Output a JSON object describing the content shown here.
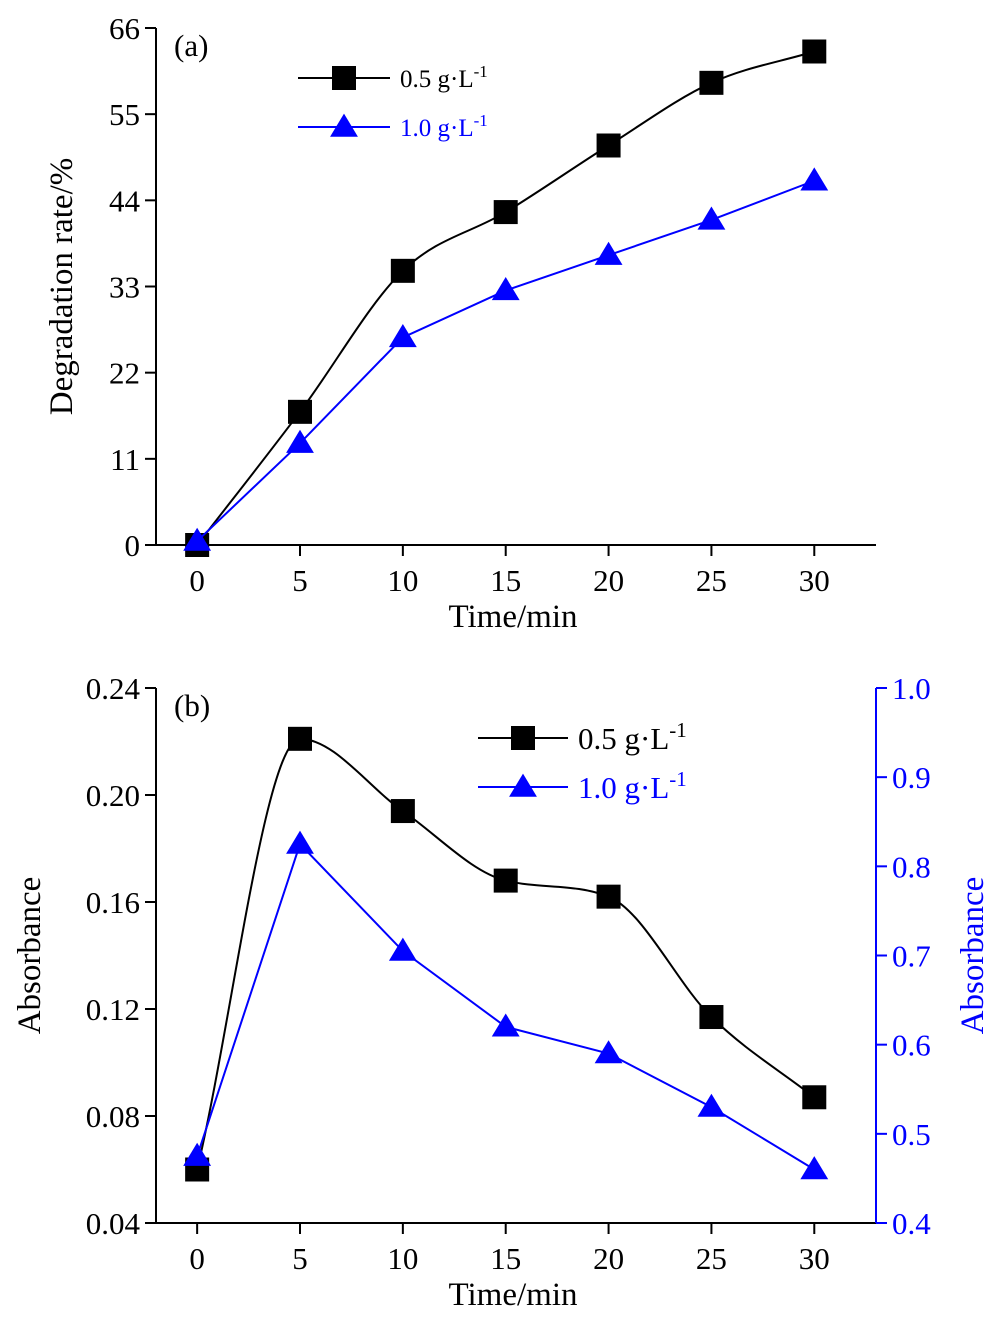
{
  "colors": {
    "black": "#000000",
    "blue": "#0000ff"
  },
  "chart_data": [
    {
      "type": "line",
      "panel_label": "(a)",
      "xlabel": "Time/min",
      "ylabel": "Degradation rate/%",
      "x": [
        0,
        5,
        10,
        15,
        20,
        25,
        30
      ],
      "xlim": [
        -2,
        33
      ],
      "ylim": [
        0,
        66
      ],
      "xticks": [
        "0",
        "5",
        "10",
        "15",
        "20",
        "25",
        "30"
      ],
      "yticks": [
        "0",
        "11",
        "22",
        "33",
        "44",
        "55",
        "66"
      ],
      "legend_position": "top-center",
      "grid": false,
      "series": [
        {
          "name": "0.5 g·L",
          "superscript": "-1",
          "marker": "square",
          "color": "#000000",
          "smooth": true,
          "values": [
            0,
            17,
            35,
            42.5,
            51,
            59,
            63
          ]
        },
        {
          "name": "1.0 g·L",
          "superscript": "-1",
          "marker": "triangle",
          "color": "#0000ff",
          "smooth": false,
          "values": [
            0.5,
            13,
            26.5,
            32.5,
            37,
            41.5,
            46.5
          ]
        }
      ]
    },
    {
      "type": "line",
      "panel_label": "(b)",
      "xlabel": "Time/min",
      "ylabel": "Absorbance",
      "ylabel_right": "Absorbance",
      "x": [
        0,
        5,
        10,
        15,
        20,
        25,
        30
      ],
      "xlim": [
        -2,
        33
      ],
      "ylim": [
        0.04,
        0.24
      ],
      "ylim_right": [
        0.4,
        1.0
      ],
      "xticks": [
        "0",
        "5",
        "10",
        "15",
        "20",
        "25",
        "30"
      ],
      "yticks": [
        "0.04",
        "0.08",
        "0.12",
        "0.16",
        "0.20",
        "0.24"
      ],
      "yticks_right": [
        "0.4",
        "0.5",
        "0.6",
        "0.7",
        "0.8",
        "0.9",
        "1.0"
      ],
      "legend_position": "top-right",
      "grid": false,
      "series": [
        {
          "name": "0.5 g·L",
          "superscript": "-1",
          "marker": "square",
          "color": "#000000",
          "axis": "left",
          "smooth": true,
          "values": [
            0.06,
            0.221,
            0.194,
            0.168,
            0.162,
            0.117,
            0.087
          ]
        },
        {
          "name": "1.0 g·L",
          "superscript": "-1",
          "marker": "triangle",
          "color": "#0000ff",
          "axis": "right",
          "smooth": false,
          "values": [
            0.475,
            0.825,
            0.705,
            0.62,
            0.59,
            0.53,
            0.46
          ]
        }
      ]
    }
  ]
}
